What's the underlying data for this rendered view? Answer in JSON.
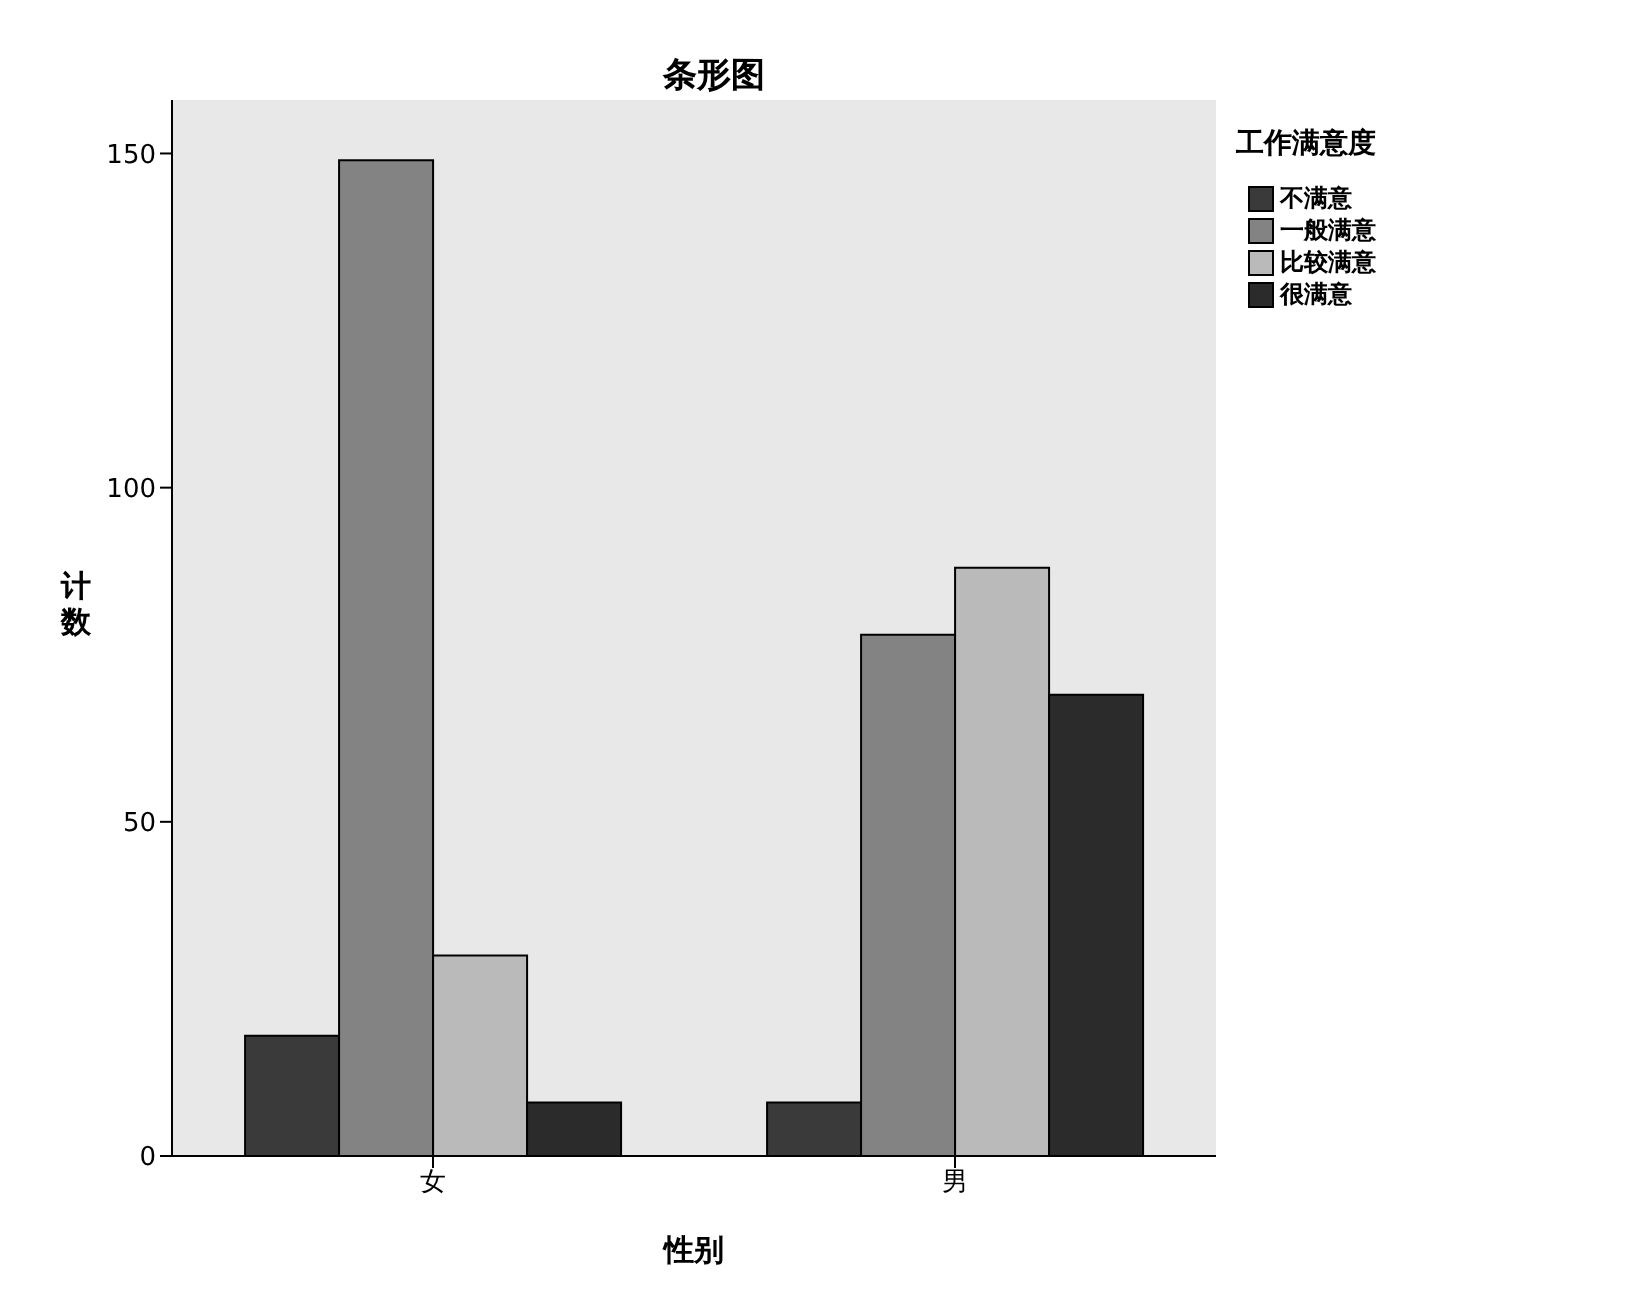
{
  "chart_data": {
    "type": "bar",
    "title": "条形图",
    "xlabel": "性别",
    "ylabel": "计数",
    "legend_title": "工作满意度",
    "categories": [
      "女",
      "男"
    ],
    "series": [
      {
        "name": "不满意",
        "color": "#3a3a3a",
        "values": [
          18,
          8
        ]
      },
      {
        "name": "一般满意",
        "color": "#838383",
        "values": [
          149,
          78
        ]
      },
      {
        "name": "比较满意",
        "color": "#bababa",
        "values": [
          30,
          88
        ]
      },
      {
        "name": "很满意",
        "color": "#2b2b2b",
        "values": [
          8,
          69
        ]
      }
    ],
    "ylim": [
      0,
      158
    ],
    "yticks": [
      0,
      50,
      100,
      150
    ],
    "legend": "top right"
  }
}
